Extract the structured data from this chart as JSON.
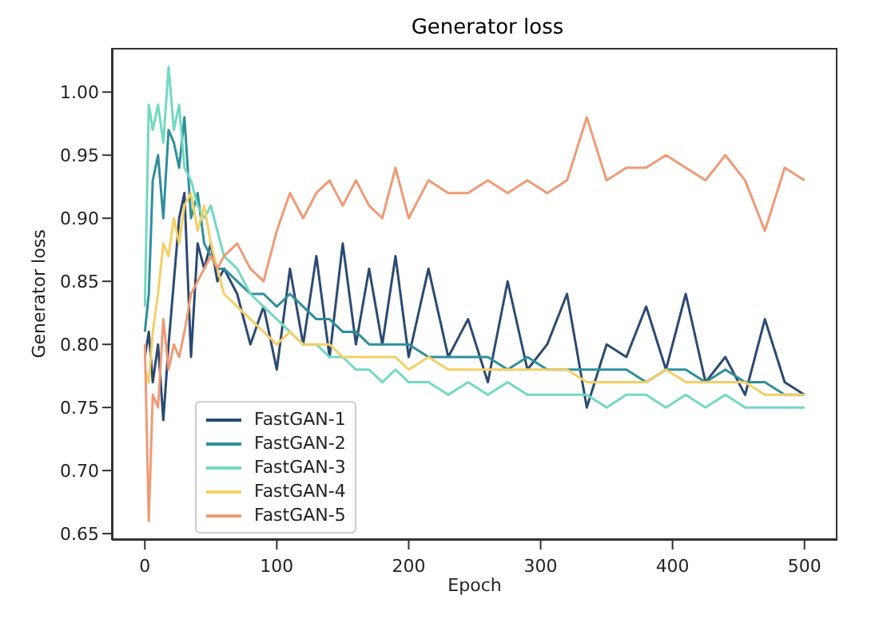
{
  "chart_data": {
    "type": "line",
    "title": "Generator loss",
    "xlabel": "Epoch",
    "ylabel": "Generator loss",
    "x": [
      0,
      3,
      6,
      10,
      14,
      18,
      22,
      26,
      30,
      35,
      40,
      45,
      50,
      55,
      60,
      70,
      80,
      90,
      100,
      110,
      120,
      130,
      140,
      150,
      160,
      170,
      180,
      190,
      200,
      215,
      230,
      245,
      260,
      275,
      290,
      305,
      320,
      335,
      350,
      365,
      380,
      395,
      410,
      425,
      440,
      455,
      470,
      485,
      500
    ],
    "series": [
      {
        "name": "FastGAN-1",
        "color": "#2b4a72",
        "values": [
          0.79,
          0.81,
          0.77,
          0.8,
          0.74,
          0.8,
          0.85,
          0.9,
          0.92,
          0.79,
          0.88,
          0.86,
          0.88,
          0.85,
          0.86,
          0.84,
          0.8,
          0.83,
          0.78,
          0.86,
          0.8,
          0.87,
          0.79,
          0.88,
          0.8,
          0.86,
          0.8,
          0.87,
          0.79,
          0.86,
          0.79,
          0.82,
          0.77,
          0.85,
          0.78,
          0.8,
          0.84,
          0.75,
          0.8,
          0.79,
          0.83,
          0.78,
          0.84,
          0.77,
          0.79,
          0.76,
          0.82,
          0.77,
          0.76
        ]
      },
      {
        "name": "FastGAN-2",
        "color": "#2e8f9a",
        "values": [
          0.81,
          0.84,
          0.93,
          0.95,
          0.9,
          0.97,
          0.96,
          0.94,
          0.98,
          0.9,
          0.92,
          0.88,
          0.87,
          0.86,
          0.86,
          0.85,
          0.84,
          0.84,
          0.83,
          0.84,
          0.83,
          0.82,
          0.82,
          0.81,
          0.81,
          0.8,
          0.8,
          0.8,
          0.8,
          0.79,
          0.79,
          0.79,
          0.79,
          0.78,
          0.79,
          0.78,
          0.78,
          0.78,
          0.78,
          0.78,
          0.77,
          0.78,
          0.78,
          0.77,
          0.78,
          0.77,
          0.77,
          0.76,
          0.76
        ]
      },
      {
        "name": "FastGAN-3",
        "color": "#72d9c0",
        "values": [
          0.83,
          0.99,
          0.97,
          0.99,
          0.96,
          1.02,
          0.97,
          0.99,
          0.94,
          0.93,
          0.91,
          0.9,
          0.91,
          0.89,
          0.87,
          0.86,
          0.84,
          0.83,
          0.82,
          0.81,
          0.8,
          0.8,
          0.79,
          0.79,
          0.78,
          0.78,
          0.77,
          0.78,
          0.77,
          0.77,
          0.76,
          0.77,
          0.76,
          0.77,
          0.76,
          0.76,
          0.76,
          0.76,
          0.75,
          0.76,
          0.76,
          0.75,
          0.76,
          0.75,
          0.76,
          0.75,
          0.75,
          0.75,
          0.75
        ]
      },
      {
        "name": "FastGAN-4",
        "color": "#f5cf64",
        "values": [
          0.78,
          0.77,
          0.81,
          0.84,
          0.88,
          0.87,
          0.9,
          0.88,
          0.91,
          0.92,
          0.89,
          0.91,
          0.88,
          0.86,
          0.84,
          0.83,
          0.82,
          0.81,
          0.8,
          0.81,
          0.8,
          0.8,
          0.8,
          0.79,
          0.79,
          0.79,
          0.79,
          0.79,
          0.78,
          0.79,
          0.78,
          0.78,
          0.78,
          0.78,
          0.78,
          0.78,
          0.78,
          0.77,
          0.77,
          0.77,
          0.77,
          0.78,
          0.77,
          0.77,
          0.77,
          0.77,
          0.76,
          0.76,
          0.76
        ]
      },
      {
        "name": "FastGAN-5",
        "color": "#f09a74",
        "values": [
          0.8,
          0.66,
          0.76,
          0.75,
          0.82,
          0.78,
          0.8,
          0.79,
          0.81,
          0.84,
          0.85,
          0.86,
          0.87,
          0.86,
          0.87,
          0.88,
          0.86,
          0.85,
          0.89,
          0.92,
          0.9,
          0.92,
          0.93,
          0.91,
          0.93,
          0.91,
          0.9,
          0.94,
          0.9,
          0.93,
          0.92,
          0.92,
          0.93,
          0.92,
          0.93,
          0.92,
          0.93,
          0.98,
          0.93,
          0.94,
          0.94,
          0.95,
          0.94,
          0.93,
          0.95,
          0.93,
          0.89,
          0.94,
          0.93
        ]
      }
    ],
    "xlim": [
      -25,
      525
    ],
    "xticks": [
      0,
      100,
      200,
      300,
      400,
      500
    ],
    "ylim": [
      0.645,
      1.035
    ],
    "yticks": [
      {
        "value": 0.65,
        "label": "0.65"
      },
      {
        "value": 0.7,
        "label": "0.70"
      },
      {
        "value": 0.75,
        "label": "0.75"
      },
      {
        "value": 0.8,
        "label": "0.80"
      },
      {
        "value": 0.85,
        "label": "0.85"
      },
      {
        "value": 0.9,
        "label": "0.90"
      },
      {
        "value": 0.95,
        "label": "0.95"
      },
      {
        "value": 1.0,
        "label": "1.00"
      }
    ],
    "legend": "bottom left",
    "grid": false,
    "marker": "none",
    "line_style": "solid"
  }
}
